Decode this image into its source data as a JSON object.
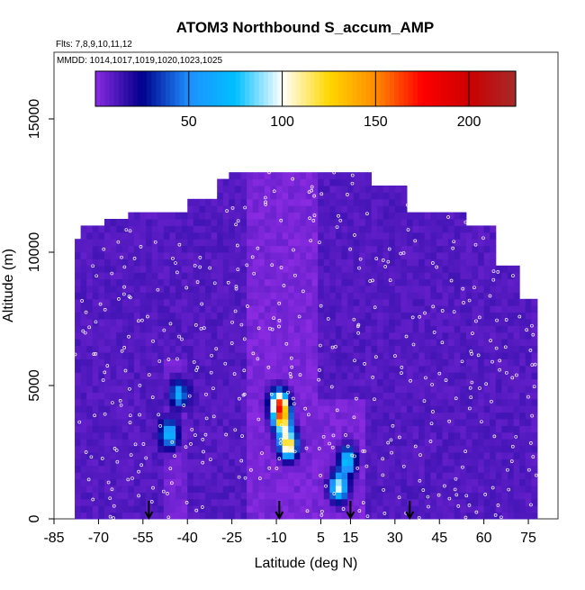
{
  "chart_data": {
    "type": "heatmap",
    "title": "ATOM3 Northbound S_accum_AMP",
    "flights_note": "Flts: 7,8,9,10,11,12",
    "dates_note": "MMDD: 1014,1017,1019,1020,1023,1025",
    "xlabel": "Latitude (deg N)",
    "ylabel": "Altitude (m)",
    "xlim": [
      -85,
      85
    ],
    "ylim": [
      0,
      17500
    ],
    "xticks": [
      -85,
      -70,
      -55,
      -40,
      -25,
      -10,
      5,
      15,
      30,
      45,
      60,
      75
    ],
    "yticks": [
      0,
      5000,
      10000,
      15000
    ],
    "colorbar": {
      "range": [
        0,
        225
      ],
      "ticks": [
        50,
        100,
        150,
        200
      ],
      "colors": [
        "#8a2be2",
        "#00008b",
        "#1e90ff",
        "#00bfff",
        "#ffffff",
        "#ffd700",
        "#ff8c00",
        "#ff0000",
        "#cc0000",
        "#a52a2a"
      ]
    },
    "background_value": 10,
    "hotspots": [
      {
        "lat": -9,
        "alt": 4300,
        "value": 150
      },
      {
        "lat": -8,
        "alt": 3700,
        "value": 110
      },
      {
        "lat": -6,
        "alt": 2800,
        "value": 130
      },
      {
        "lat": 11,
        "alt": 1200,
        "value": 95
      },
      {
        "lat": 14,
        "alt": 2200,
        "value": 75
      },
      {
        "lat": -46,
        "alt": 3200,
        "value": 70
      },
      {
        "lat": -43,
        "alt": 4700,
        "value": 60
      }
    ],
    "arrow_markers_lat": [
      -53,
      -9,
      15,
      35
    ],
    "scatter_points": []
  }
}
